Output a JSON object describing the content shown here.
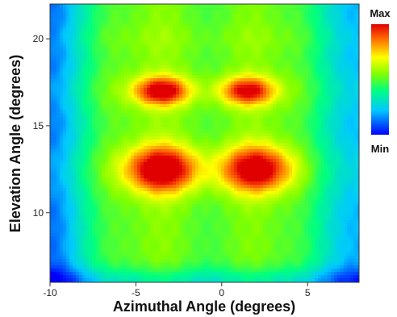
{
  "chart_data": {
    "type": "heatmap",
    "title": "",
    "xlabel": "Azimuthal Angle (degrees)",
    "ylabel": "Elevation Angle (degrees)",
    "xlim": [
      -10,
      8
    ],
    "ylim": [
      6,
      22
    ],
    "x_ticks": [
      -10,
      -5,
      0,
      5
    ],
    "x_tick_labels": [
      "-10",
      "-5",
      "0",
      "5"
    ],
    "y_ticks": [
      10,
      15,
      20
    ],
    "y_tick_labels": [
      "10",
      "15",
      "20"
    ],
    "colorbar": {
      "max_label": "Max",
      "min_label": "Min",
      "colormap": [
        "#0000ff",
        "#00c8ff",
        "#00ff96",
        "#96ff00",
        "#ffff00",
        "#ff8000",
        "#e00000"
      ]
    },
    "grid": false,
    "description_values": {
      "background_level": 0.42,
      "hotspots": [
        {
          "x": -3.5,
          "y": 12.5,
          "level": 1.0
        },
        {
          "x": 2.0,
          "y": 12.5,
          "level": 0.97
        },
        {
          "x": -3.5,
          "y": 17.0,
          "level": 0.95
        },
        {
          "x": 1.5,
          "y": 17.0,
          "level": 0.9
        }
      ]
    }
  }
}
